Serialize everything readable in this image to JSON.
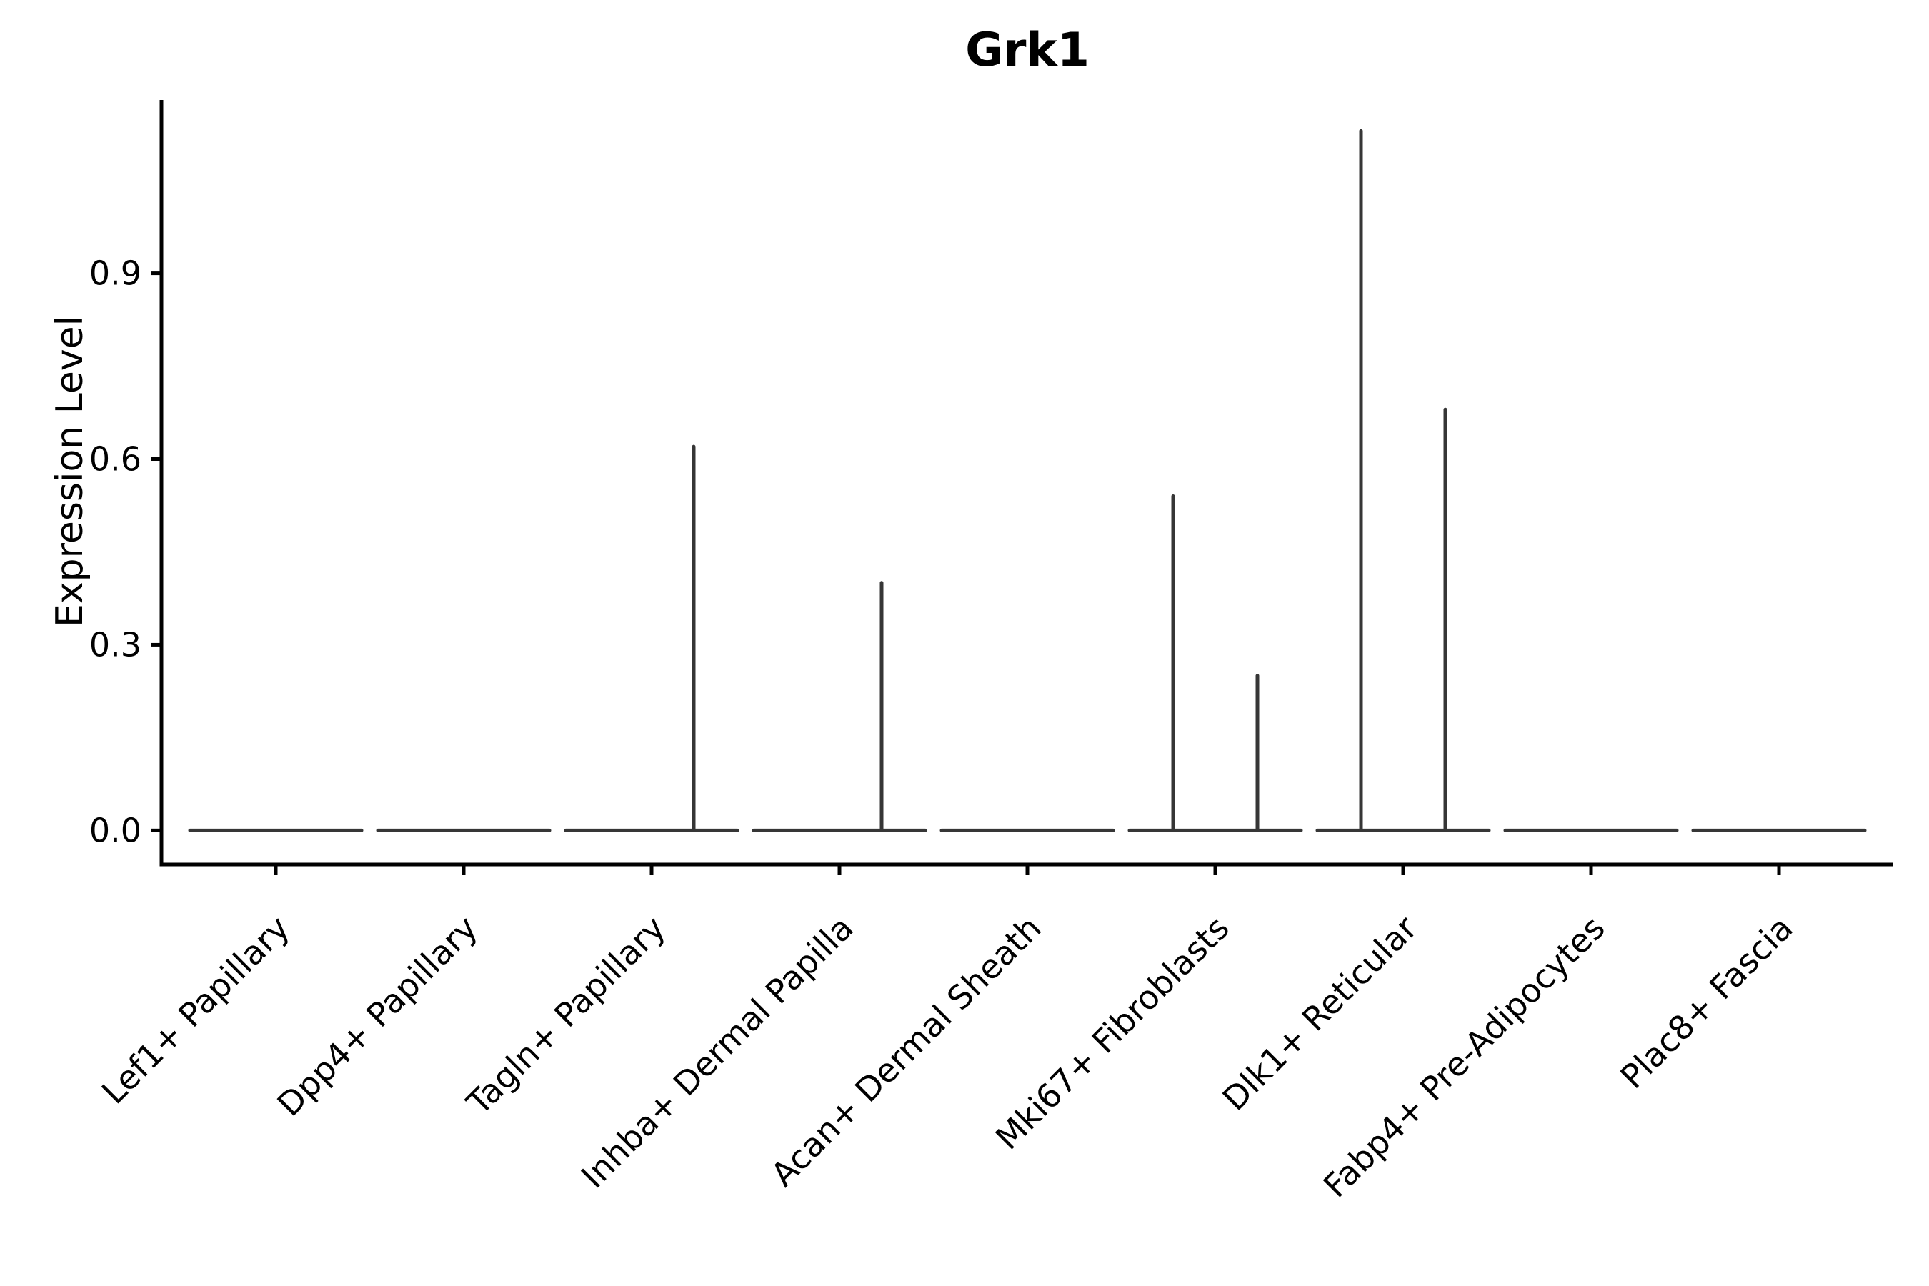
{
  "page": {
    "background": "#ffffff"
  },
  "chart": {
    "title": "Grk1",
    "ylabel": "Expression Level",
    "xlabel": "",
    "marks_color": "#363636",
    "axis_color": "#000000",
    "text_color": "#000000",
    "chart_data": {
      "type": "violin",
      "title": "Grk1",
      "xlabel": "",
      "ylabel": "Expression Level",
      "ylim": [
        -0.055,
        1.18
      ],
      "grid": false,
      "legend": null,
      "y_ticks": [
        {
          "value": 0.0,
          "label": "0.0"
        },
        {
          "value": 0.3,
          "label": "0.3"
        },
        {
          "value": 0.6,
          "label": "0.6"
        },
        {
          "value": 0.9,
          "label": "0.9"
        }
      ],
      "categories": [
        "Lef1+ Papillary",
        "Dpp4+ Papillary",
        "Tagln+ Papillary",
        "Inhba+ Dermal Papilla",
        "Acan+ Dermal Sheath",
        "Mki67+ Fibroblasts",
        "Dlk1+ Reticular",
        "Fabp4+ Pre-Adipocytes",
        "Plac8+ Fascia"
      ],
      "violins": [
        {
          "category": "Lef1+ Papillary",
          "baseline_value": 0.0,
          "tails": []
        },
        {
          "category": "Dpp4+ Papillary",
          "baseline_value": 0.0,
          "tails": []
        },
        {
          "category": "Tagln+ Papillary",
          "baseline_value": 0.0,
          "tails": [
            {
              "side": "right",
              "max": 0.62
            }
          ]
        },
        {
          "category": "Inhba+ Dermal Papilla",
          "baseline_value": 0.0,
          "tails": [
            {
              "side": "right",
              "max": 0.4
            }
          ]
        },
        {
          "category": "Acan+ Dermal Sheath",
          "baseline_value": 0.0,
          "tails": []
        },
        {
          "category": "Mki67+ Fibroblasts",
          "baseline_value": 0.0,
          "tails": [
            {
              "side": "left",
              "max": 0.54
            },
            {
              "side": "right",
              "max": 0.25
            }
          ]
        },
        {
          "category": "Dlk1+ Reticular",
          "baseline_value": 0.0,
          "tails": [
            {
              "side": "left",
              "max": 1.13
            },
            {
              "side": "right",
              "max": 0.68
            }
          ]
        },
        {
          "category": "Fabp4+ Pre-Adipocytes",
          "baseline_value": 0.0,
          "tails": []
        },
        {
          "category": "Plac8+ Fascia",
          "baseline_value": 0.0,
          "tails": []
        }
      ],
      "layout_hints": {
        "tail_offset_fraction_of_width": 0.246,
        "violin_scale": "width"
      }
    }
  }
}
